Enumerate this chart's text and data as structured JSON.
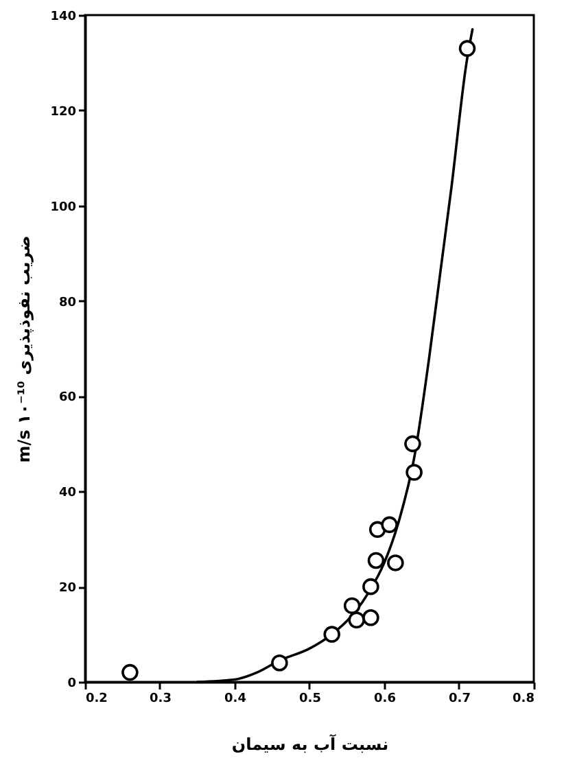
{
  "chart_data": {
    "type": "scatter",
    "xlabel": "نسبت آب به سیمان",
    "ylabel": "ضریب نفوذپذیری ۱۰⁻¹⁰ m/s",
    "xlim": [
      0.2,
      0.8
    ],
    "xticks": [
      0.2,
      0.3,
      0.4,
      0.5,
      0.6,
      0.7,
      0.8
    ],
    "ylim": [
      0,
      140
    ],
    "yticks": [
      0,
      20,
      40,
      60,
      80,
      100,
      120,
      140
    ],
    "grid": false,
    "marker": "circle",
    "series": [
      {
        "color": "#000000",
        "x": [
          0.26,
          0.46,
          0.53,
          0.557,
          0.563,
          0.582,
          0.582,
          0.589,
          0.615,
          0.591,
          0.607,
          0.64,
          0.638,
          0.711
        ],
        "values": [
          2,
          4,
          10,
          16,
          13,
          13.5,
          20,
          25.5,
          25,
          32,
          33,
          44,
          50,
          133
        ]
      },
      {
        "type": "line",
        "color": "#000000",
        "marker": "none",
        "line_style": "solid",
        "x": [
          0.35,
          0.4,
          0.43,
          0.46,
          0.5,
          0.53,
          0.56,
          0.58,
          0.6,
          0.62,
          0.64,
          0.66,
          0.675,
          0.69,
          0.71,
          0.718
        ],
        "values": [
          0,
          0.5,
          2,
          4.5,
          7,
          10,
          14.5,
          19,
          25,
          34,
          47,
          68,
          86,
          104,
          130,
          137
        ]
      }
    ]
  }
}
